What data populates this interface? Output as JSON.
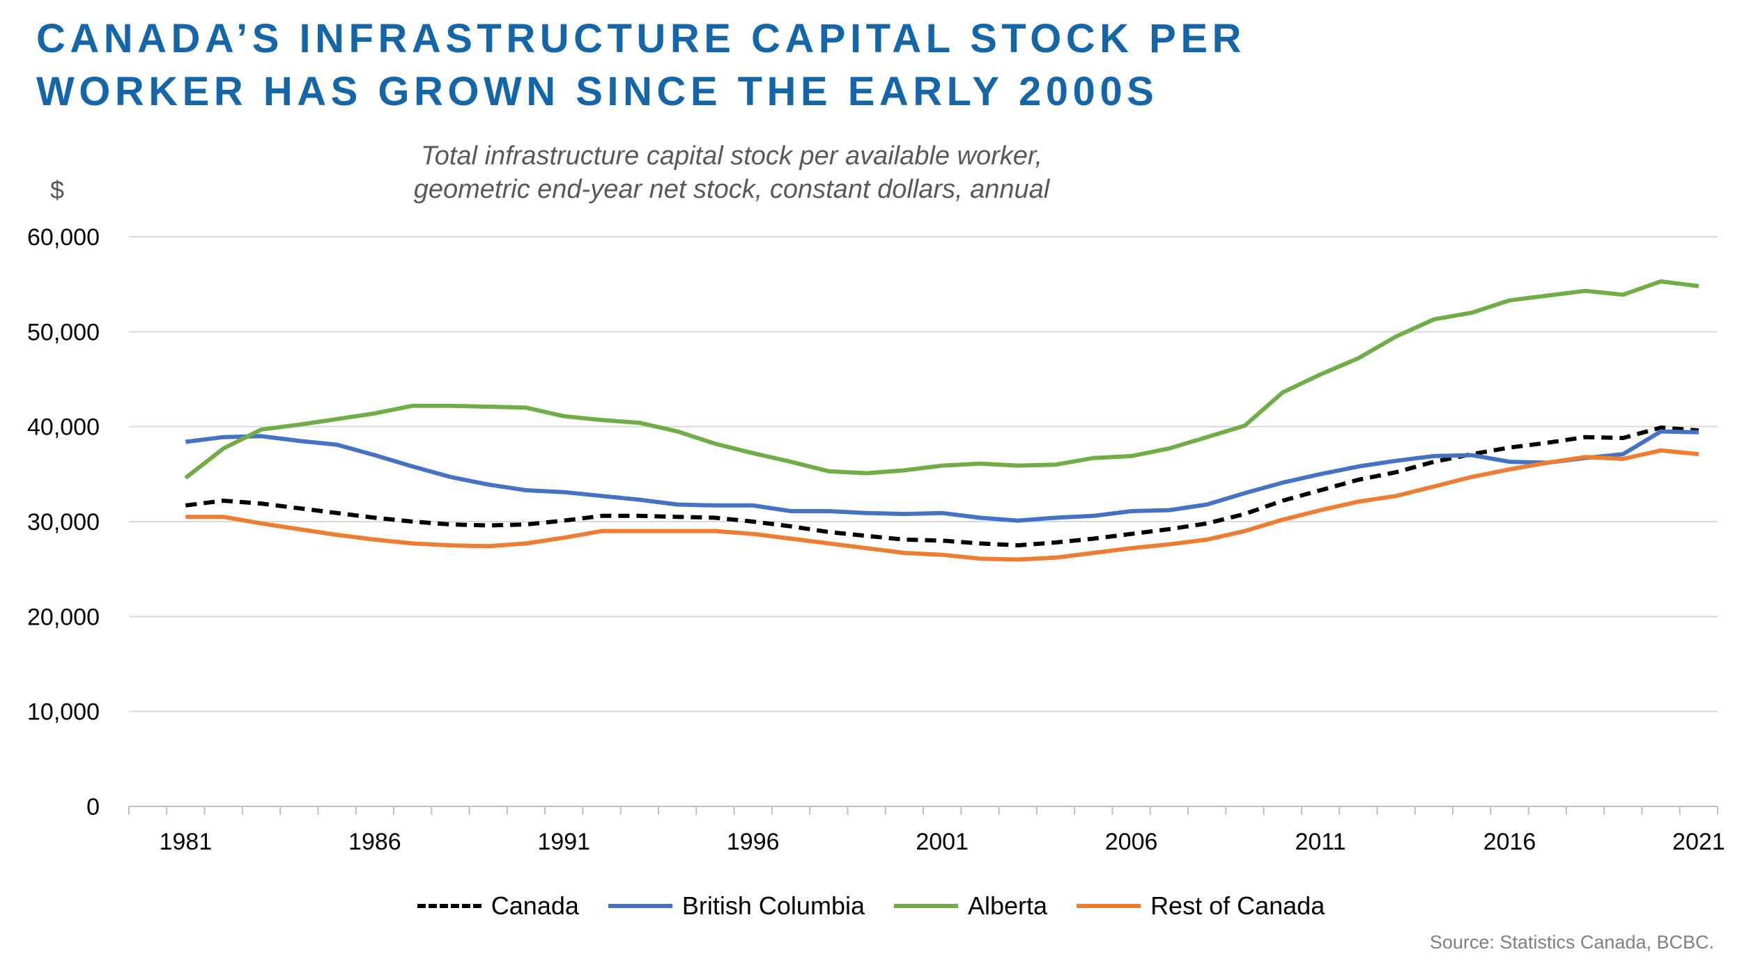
{
  "title_lines": [
    "CANADA’S INFRASTRUCTURE CAPITAL STOCK PER",
    "WORKER HAS GROWN SINCE THE EARLY 2000S"
  ],
  "subtitle_lines": [
    "Total infrastructure capital stock per available worker,",
    "geometric end-year net stock, constant dollars, annual"
  ],
  "y_unit": "$",
  "source": "Source: Statistics Canada, BCBC.",
  "colors": {
    "title": "#1466a8",
    "gridline": "#d9d9d9",
    "axis": "#bfbfbf"
  },
  "chart_data": {
    "type": "line",
    "title": "CANADA’S INFRASTRUCTURE CAPITAL STOCK PER WORKER HAS GROWN SINCE THE EARLY 2000S",
    "subtitle": "Total infrastructure capital stock per available worker, geometric end-year net stock, constant dollars, annual",
    "xlabel": "",
    "ylabel": "$",
    "ylim": [
      0,
      60000
    ],
    "y_ticks": [
      0,
      10000,
      20000,
      30000,
      40000,
      50000,
      60000
    ],
    "y_tick_labels": [
      "0",
      "10,000",
      "20,000",
      "30,000",
      "40,000",
      "50,000",
      "60,000"
    ],
    "x_ticks": [
      1981,
      1986,
      1991,
      1996,
      2001,
      2006,
      2011,
      2016,
      2021
    ],
    "x_tick_labels": [
      "1981",
      "1986",
      "1991",
      "1996",
      "2001",
      "2006",
      "2011",
      "2016",
      "2021"
    ],
    "grid": true,
    "legend_position": "bottom",
    "x": [
      1981,
      1982,
      1983,
      1984,
      1985,
      1986,
      1987,
      1988,
      1989,
      1990,
      1991,
      1992,
      1993,
      1994,
      1995,
      1996,
      1997,
      1998,
      1999,
      2000,
      2001,
      2002,
      2003,
      2004,
      2005,
      2006,
      2007,
      2008,
      2009,
      2010,
      2011,
      2012,
      2013,
      2014,
      2015,
      2016,
      2017,
      2018,
      2019,
      2020,
      2021
    ],
    "series": [
      {
        "name": "Canada",
        "color": "#000000",
        "dashed": true,
        "values": [
          31700,
          32200,
          31900,
          31400,
          30900,
          30400,
          30000,
          29700,
          29600,
          29700,
          30100,
          30600,
          30600,
          30500,
          30400,
          30000,
          29500,
          28900,
          28500,
          28100,
          28000,
          27700,
          27500,
          27800,
          28200,
          28700,
          29200,
          29800,
          30800,
          32200,
          33300,
          34400,
          35200,
          36300,
          37100,
          37800,
          38300,
          38900,
          38800,
          39900,
          39600
        ]
      },
      {
        "name": "British Columbia",
        "color": "#4472c4",
        "dashed": false,
        "values": [
          38400,
          38900,
          39000,
          38500,
          38100,
          37000,
          35800,
          34700,
          33900,
          33300,
          33100,
          32700,
          32300,
          31800,
          31700,
          31700,
          31100,
          31100,
          30900,
          30800,
          30900,
          30400,
          30100,
          30400,
          30600,
          31100,
          31200,
          31800,
          33000,
          34100,
          35000,
          35800,
          36400,
          36900,
          37000,
          36300,
          36200,
          36700,
          37100,
          39500,
          39400
        ]
      },
      {
        "name": "Alberta",
        "color": "#70ad47",
        "dashed": false,
        "values": [
          34600,
          37700,
          39700,
          40200,
          40800,
          41400,
          42200,
          42200,
          42100,
          42000,
          41100,
          40700,
          40400,
          39500,
          38200,
          37200,
          36300,
          35300,
          35100,
          35400,
          35900,
          36100,
          35900,
          36000,
          36700,
          36900,
          37700,
          38900,
          40100,
          43600,
          45500,
          47200,
          49500,
          51300,
          52000,
          53300,
          53800,
          54300,
          53900,
          55300,
          54800
        ]
      },
      {
        "name": "Rest of Canada",
        "color": "#ed7d31",
        "dashed": false,
        "values": [
          30500,
          30500,
          29800,
          29200,
          28600,
          28100,
          27700,
          27500,
          27400,
          27700,
          28300,
          29000,
          29000,
          29000,
          29000,
          28700,
          28200,
          27700,
          27200,
          26700,
          26500,
          26100,
          26000,
          26200,
          26700,
          27200,
          27600,
          28100,
          29000,
          30200,
          31200,
          32100,
          32700,
          33700,
          34700,
          35500,
          36200,
          36800,
          36600,
          37500,
          37100
        ]
      }
    ]
  }
}
